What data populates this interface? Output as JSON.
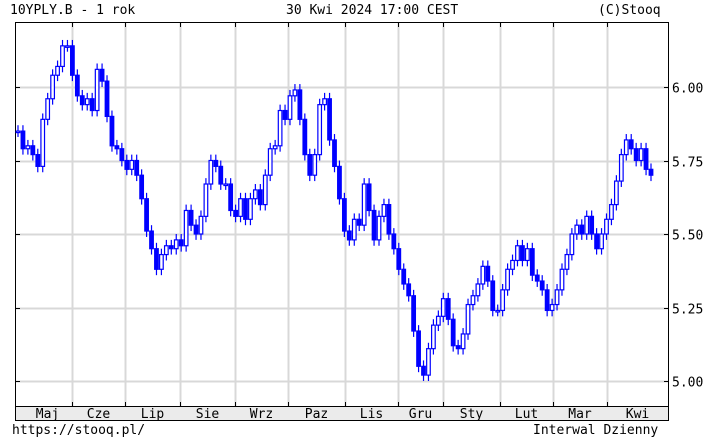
{
  "header": {
    "title": "10YPLY.B - 1 rok",
    "datetime": "30 Kwi 2024 17:00 CEST",
    "copyright": "(C)Stooq"
  },
  "footer": {
    "url": "https://stooq.pl/",
    "interval": "Interwal Dzienny"
  },
  "colors": {
    "series": "#0000ff",
    "grid": "#d8d8d8",
    "axis_bar": "#ebebeb"
  },
  "chart_data": {
    "type": "candlestick",
    "title": "10YPLY.B - 1 rok",
    "x_tick_labels": [
      "Maj",
      "Cze",
      "Lip",
      "Sie",
      "Wrz",
      "Paz",
      "Lis",
      "Gru",
      "Sty",
      "Lut",
      "Mar",
      "Kwi"
    ],
    "y_tick_labels": [
      "6.00",
      "5.75",
      "5.50",
      "5.25",
      "5.00"
    ],
    "y_ticks": [
      6.0,
      5.75,
      5.5,
      5.25,
      5.0
    ],
    "ylim": [
      4.89,
      6.22
    ],
    "grid": true,
    "y_axis_side": "right",
    "close": [
      5.85,
      5.79,
      5.8,
      5.77,
      5.73,
      5.89,
      5.96,
      6.04,
      6.07,
      6.14,
      6.14,
      6.04,
      5.97,
      5.94,
      5.96,
      5.92,
      6.06,
      6.02,
      5.9,
      5.8,
      5.79,
      5.75,
      5.72,
      5.75,
      5.7,
      5.62,
      5.51,
      5.45,
      5.38,
      5.43,
      5.46,
      5.45,
      5.48,
      5.46,
      5.58,
      5.53,
      5.5,
      5.56,
      5.67,
      5.75,
      5.73,
      5.67,
      5.67,
      5.58,
      5.56,
      5.62,
      5.55,
      5.62,
      5.65,
      5.6,
      5.7,
      5.79,
      5.8,
      5.92,
      5.89,
      5.97,
      5.99,
      5.89,
      5.77,
      5.7,
      5.77,
      5.94,
      5.96,
      5.82,
      5.73,
      5.62,
      5.51,
      5.48,
      5.55,
      5.53,
      5.67,
      5.58,
      5.48,
      5.56,
      5.6,
      5.5,
      5.45,
      5.38,
      5.33,
      5.29,
      5.17,
      5.05,
      5.02,
      5.11,
      5.19,
      5.22,
      5.28,
      5.21,
      5.12,
      5.11,
      5.16,
      5.26,
      5.29,
      5.33,
      5.39,
      5.34,
      5.24,
      5.24,
      5.31,
      5.38,
      5.41,
      5.46,
      5.41,
      5.45,
      5.36,
      5.34,
      5.31,
      5.24,
      5.26,
      5.31,
      5.38,
      5.43,
      5.5,
      5.53,
      5.5,
      5.56,
      5.5,
      5.45,
      5.5,
      5.55,
      5.6,
      5.68,
      5.77,
      5.82,
      5.79,
      5.75,
      5.79,
      5.72,
      5.7
    ]
  }
}
